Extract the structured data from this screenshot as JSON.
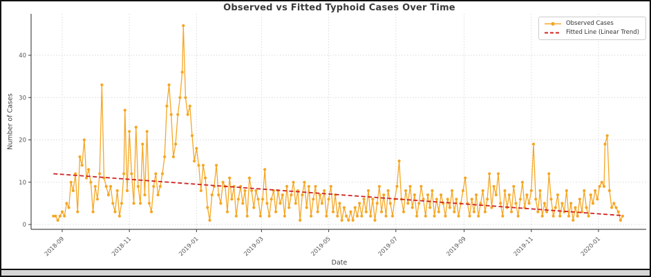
{
  "chart_data": {
    "type": "line",
    "title": "Observed vs Fitted Typhoid Cases Over Time",
    "xlabel": "Date",
    "ylabel": "Number of Cases",
    "x_tick_labels": [
      "2018-09",
      "2018-11",
      "2019-01",
      "2019-03",
      "2019-05",
      "2019-07",
      "2019-09",
      "2019-11",
      "2020-01"
    ],
    "y_ticks": [
      0,
      10,
      20,
      30,
      40
    ],
    "ylim": [
      -1.2,
      49.8
    ],
    "grid": true,
    "background": "#ffffff",
    "grid_color": "#d9d9d9",
    "legend_position": "upper right",
    "series": [
      {
        "name": "Observed Cases",
        "color": "#F5A623",
        "style": "solid",
        "marker": "circle",
        "points": [
          [
            "2018-08-24",
            2
          ],
          [
            "2018-08-26",
            2
          ],
          [
            "2018-08-28",
            1
          ],
          [
            "2018-08-30",
            2
          ],
          [
            "2018-09-01",
            3
          ],
          [
            "2018-09-03",
            2
          ],
          [
            "2018-09-05",
            5
          ],
          [
            "2018-09-07",
            4
          ],
          [
            "2018-09-09",
            10
          ],
          [
            "2018-09-11",
            8
          ],
          [
            "2018-09-13",
            12
          ],
          [
            "2018-09-15",
            3
          ],
          [
            "2018-09-17",
            16
          ],
          [
            "2018-09-19",
            14
          ],
          [
            "2018-09-21",
            20
          ],
          [
            "2018-09-23",
            11
          ],
          [
            "2018-09-25",
            13
          ],
          [
            "2018-09-27",
            10
          ],
          [
            "2018-09-29",
            3
          ],
          [
            "2018-10-01",
            9
          ],
          [
            "2018-10-03",
            6
          ],
          [
            "2018-10-05",
            12
          ],
          [
            "2018-10-07",
            33
          ],
          [
            "2018-10-09",
            11
          ],
          [
            "2018-10-11",
            9
          ],
          [
            "2018-10-13",
            7
          ],
          [
            "2018-10-15",
            9
          ],
          [
            "2018-10-17",
            5
          ],
          [
            "2018-10-19",
            3
          ],
          [
            "2018-10-21",
            8
          ],
          [
            "2018-10-23",
            2
          ],
          [
            "2018-10-25",
            5
          ],
          [
            "2018-10-27",
            12
          ],
          [
            "2018-10-28",
            27
          ],
          [
            "2018-10-30",
            8
          ],
          [
            "2018-11-01",
            22
          ],
          [
            "2018-11-03",
            12
          ],
          [
            "2018-11-05",
            5
          ],
          [
            "2018-11-07",
            23
          ],
          [
            "2018-11-09",
            9
          ],
          [
            "2018-11-11",
            5
          ],
          [
            "2018-11-13",
            19
          ],
          [
            "2018-11-15",
            7
          ],
          [
            "2018-11-17",
            22
          ],
          [
            "2018-11-19",
            5
          ],
          [
            "2018-11-21",
            3
          ],
          [
            "2018-11-23",
            9
          ],
          [
            "2018-11-25",
            12
          ],
          [
            "2018-11-27",
            7
          ],
          [
            "2018-11-29",
            9
          ],
          [
            "2018-12-01",
            12
          ],
          [
            "2018-12-03",
            16
          ],
          [
            "2018-12-05",
            28
          ],
          [
            "2018-12-07",
            33
          ],
          [
            "2018-12-09",
            26
          ],
          [
            "2018-12-11",
            16
          ],
          [
            "2018-12-13",
            19
          ],
          [
            "2018-12-15",
            26
          ],
          [
            "2018-12-17",
            30
          ],
          [
            "2018-12-19",
            36
          ],
          [
            "2018-12-20",
            47
          ],
          [
            "2018-12-22",
            30
          ],
          [
            "2018-12-24",
            26
          ],
          [
            "2018-12-26",
            28
          ],
          [
            "2018-12-28",
            21
          ],
          [
            "2018-12-30",
            15
          ],
          [
            "2019-01-01",
            18
          ],
          [
            "2019-01-03",
            14
          ],
          [
            "2019-01-05",
            8
          ],
          [
            "2019-01-07",
            14
          ],
          [
            "2019-01-09",
            11
          ],
          [
            "2019-01-11",
            4
          ],
          [
            "2019-01-13",
            1
          ],
          [
            "2019-01-15",
            7
          ],
          [
            "2019-01-17",
            9
          ],
          [
            "2019-01-19",
            14
          ],
          [
            "2019-01-21",
            7
          ],
          [
            "2019-01-23",
            5
          ],
          [
            "2019-01-25",
            10
          ],
          [
            "2019-01-27",
            9
          ],
          [
            "2019-01-29",
            3
          ],
          [
            "2019-01-31",
            11
          ],
          [
            "2019-02-02",
            6
          ],
          [
            "2019-02-04",
            9
          ],
          [
            "2019-02-06",
            2
          ],
          [
            "2019-02-08",
            6
          ],
          [
            "2019-02-10",
            9
          ],
          [
            "2019-02-12",
            5
          ],
          [
            "2019-02-14",
            8
          ],
          [
            "2019-02-16",
            2
          ],
          [
            "2019-02-18",
            11
          ],
          [
            "2019-02-20",
            8
          ],
          [
            "2019-02-22",
            4
          ],
          [
            "2019-02-24",
            8
          ],
          [
            "2019-02-26",
            6
          ],
          [
            "2019-02-28",
            2
          ],
          [
            "2019-03-02",
            6
          ],
          [
            "2019-03-04",
            13
          ],
          [
            "2019-03-06",
            5
          ],
          [
            "2019-03-08",
            2
          ],
          [
            "2019-03-10",
            6
          ],
          [
            "2019-03-12",
            8
          ],
          [
            "2019-03-14",
            3
          ],
          [
            "2019-03-16",
            8
          ],
          [
            "2019-03-18",
            5
          ],
          [
            "2019-03-20",
            7
          ],
          [
            "2019-03-22",
            2
          ],
          [
            "2019-03-24",
            9
          ],
          [
            "2019-03-26",
            4
          ],
          [
            "2019-03-28",
            7
          ],
          [
            "2019-03-30",
            10
          ],
          [
            "2019-04-01",
            5
          ],
          [
            "2019-04-03",
            8
          ],
          [
            "2019-04-05",
            1
          ],
          [
            "2019-04-07",
            7
          ],
          [
            "2019-04-09",
            10
          ],
          [
            "2019-04-11",
            4
          ],
          [
            "2019-04-13",
            9
          ],
          [
            "2019-04-15",
            2
          ],
          [
            "2019-04-17",
            6
          ],
          [
            "2019-04-19",
            9
          ],
          [
            "2019-04-21",
            3
          ],
          [
            "2019-04-23",
            7
          ],
          [
            "2019-04-25",
            5
          ],
          [
            "2019-04-27",
            8
          ],
          [
            "2019-04-29",
            2
          ],
          [
            "2019-05-01",
            6
          ],
          [
            "2019-05-03",
            9
          ],
          [
            "2019-05-05",
            3
          ],
          [
            "2019-05-07",
            7
          ],
          [
            "2019-05-09",
            2
          ],
          [
            "2019-05-11",
            5
          ],
          [
            "2019-05-13",
            1
          ],
          [
            "2019-05-15",
            4
          ],
          [
            "2019-05-17",
            2
          ],
          [
            "2019-05-19",
            1
          ],
          [
            "2019-05-21",
            3
          ],
          [
            "2019-05-23",
            1
          ],
          [
            "2019-05-25",
            4
          ],
          [
            "2019-05-27",
            2
          ],
          [
            "2019-05-29",
            5
          ],
          [
            "2019-05-31",
            2
          ],
          [
            "2019-06-02",
            6
          ],
          [
            "2019-06-04",
            3
          ],
          [
            "2019-06-06",
            8
          ],
          [
            "2019-06-08",
            2
          ],
          [
            "2019-06-10",
            6
          ],
          [
            "2019-06-12",
            1
          ],
          [
            "2019-06-14",
            5
          ],
          [
            "2019-06-16",
            9
          ],
          [
            "2019-06-18",
            3
          ],
          [
            "2019-06-20",
            7
          ],
          [
            "2019-06-22",
            2
          ],
          [
            "2019-06-24",
            8
          ],
          [
            "2019-06-26",
            5
          ],
          [
            "2019-06-28",
            2
          ],
          [
            "2019-06-30",
            6
          ],
          [
            "2019-07-02",
            9
          ],
          [
            "2019-07-04",
            15
          ],
          [
            "2019-07-06",
            6
          ],
          [
            "2019-07-08",
            3
          ],
          [
            "2019-07-10",
            8
          ],
          [
            "2019-07-12",
            5
          ],
          [
            "2019-07-14",
            9
          ],
          [
            "2019-07-16",
            4
          ],
          [
            "2019-07-18",
            7
          ],
          [
            "2019-07-20",
            2
          ],
          [
            "2019-07-22",
            5
          ],
          [
            "2019-07-24",
            9
          ],
          [
            "2019-07-26",
            6
          ],
          [
            "2019-07-28",
            2
          ],
          [
            "2019-07-30",
            7
          ],
          [
            "2019-08-01",
            4
          ],
          [
            "2019-08-03",
            8
          ],
          [
            "2019-08-05",
            2
          ],
          [
            "2019-08-07",
            6
          ],
          [
            "2019-08-09",
            3
          ],
          [
            "2019-08-11",
            7
          ],
          [
            "2019-08-13",
            5
          ],
          [
            "2019-08-15",
            2
          ],
          [
            "2019-08-17",
            6
          ],
          [
            "2019-08-19",
            4
          ],
          [
            "2019-08-21",
            8
          ],
          [
            "2019-08-23",
            3
          ],
          [
            "2019-08-25",
            6
          ],
          [
            "2019-08-27",
            2
          ],
          [
            "2019-08-29",
            5
          ],
          [
            "2019-08-31",
            8
          ],
          [
            "2019-09-02",
            11
          ],
          [
            "2019-09-04",
            5
          ],
          [
            "2019-09-06",
            2
          ],
          [
            "2019-09-08",
            6
          ],
          [
            "2019-09-10",
            3
          ],
          [
            "2019-09-12",
            7
          ],
          [
            "2019-09-14",
            2
          ],
          [
            "2019-09-16",
            5
          ],
          [
            "2019-09-18",
            8
          ],
          [
            "2019-09-20",
            3
          ],
          [
            "2019-09-22",
            6
          ],
          [
            "2019-09-24",
            12
          ],
          [
            "2019-09-26",
            4
          ],
          [
            "2019-09-28",
            9
          ],
          [
            "2019-09-30",
            7
          ],
          [
            "2019-10-02",
            12
          ],
          [
            "2019-10-04",
            5
          ],
          [
            "2019-10-06",
            2
          ],
          [
            "2019-10-08",
            8
          ],
          [
            "2019-10-10",
            4
          ],
          [
            "2019-10-12",
            7
          ],
          [
            "2019-10-14",
            3
          ],
          [
            "2019-10-16",
            9
          ],
          [
            "2019-10-18",
            5
          ],
          [
            "2019-10-20",
            2
          ],
          [
            "2019-10-22",
            6
          ],
          [
            "2019-10-24",
            10
          ],
          [
            "2019-10-26",
            4
          ],
          [
            "2019-10-28",
            7
          ],
          [
            "2019-10-30",
            5
          ],
          [
            "2019-11-01",
            8
          ],
          [
            "2019-11-03",
            19
          ],
          [
            "2019-11-05",
            6
          ],
          [
            "2019-11-07",
            3
          ],
          [
            "2019-11-09",
            8
          ],
          [
            "2019-11-11",
            2
          ],
          [
            "2019-11-13",
            5
          ],
          [
            "2019-11-15",
            3
          ],
          [
            "2019-11-17",
            12
          ],
          [
            "2019-11-19",
            6
          ],
          [
            "2019-11-21",
            2
          ],
          [
            "2019-11-23",
            4
          ],
          [
            "2019-11-25",
            7
          ],
          [
            "2019-11-27",
            2
          ],
          [
            "2019-11-29",
            5
          ],
          [
            "2019-12-01",
            3
          ],
          [
            "2019-12-03",
            8
          ],
          [
            "2019-12-05",
            2
          ],
          [
            "2019-12-07",
            5
          ],
          [
            "2019-12-09",
            1
          ],
          [
            "2019-12-11",
            4
          ],
          [
            "2019-12-13",
            2
          ],
          [
            "2019-12-15",
            6
          ],
          [
            "2019-12-17",
            3
          ],
          [
            "2019-12-19",
            8
          ],
          [
            "2019-12-21",
            4
          ],
          [
            "2019-12-23",
            2
          ],
          [
            "2019-12-25",
            7
          ],
          [
            "2019-12-27",
            5
          ],
          [
            "2019-12-29",
            8
          ],
          [
            "2019-12-31",
            6
          ],
          [
            "2020-01-02",
            9
          ],
          [
            "2020-01-04",
            10
          ],
          [
            "2020-01-06",
            9
          ],
          [
            "2020-01-07",
            19
          ],
          [
            "2020-01-09",
            21
          ],
          [
            "2020-01-11",
            8
          ],
          [
            "2020-01-13",
            4
          ],
          [
            "2020-01-15",
            5
          ],
          [
            "2020-01-17",
            4
          ],
          [
            "2020-01-19",
            3
          ],
          [
            "2020-01-21",
            1
          ],
          [
            "2020-01-23",
            2
          ]
        ]
      },
      {
        "name": "Fitted Line (Linear Trend)",
        "color": "#D02020",
        "style": "dashed",
        "marker": "none",
        "points": [
          [
            "2018-08-24",
            12.0
          ],
          [
            "2020-01-23",
            2.1
          ]
        ]
      }
    ]
  }
}
